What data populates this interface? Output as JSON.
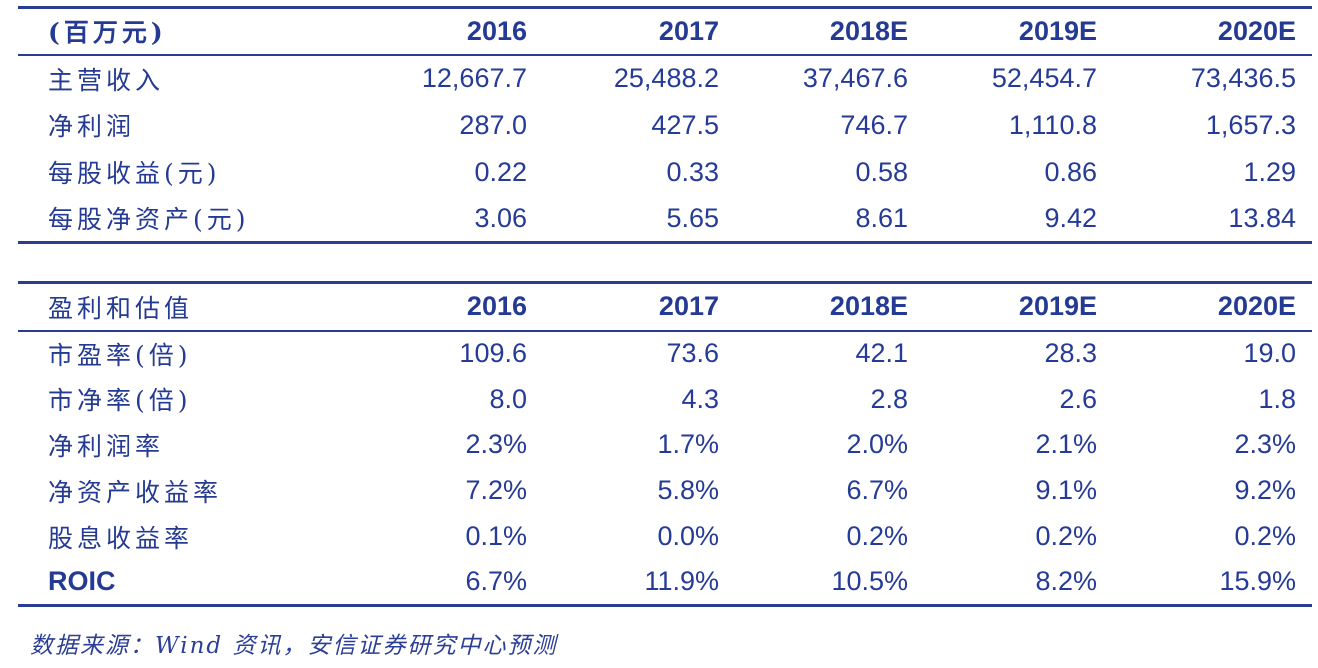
{
  "colors": {
    "text": "#243a93",
    "line": "#2a3c94",
    "background": "#ffffff"
  },
  "table1": {
    "unit_label": "(百万元)",
    "columns": [
      "2016",
      "2017",
      "2018E",
      "2019E",
      "2020E"
    ],
    "rows": [
      {
        "label": "主营收入",
        "values": [
          "12,667.7",
          "25,488.2",
          "37,467.6",
          "52,454.7",
          "73,436.5"
        ]
      },
      {
        "label": "净利润",
        "values": [
          "287.0",
          "427.5",
          "746.7",
          "1,110.8",
          "1,657.3"
        ]
      },
      {
        "label": "每股收益(元)",
        "values": [
          "0.22",
          "0.33",
          "0.58",
          "0.86",
          "1.29"
        ]
      },
      {
        "label": "每股净资产(元)",
        "values": [
          "3.06",
          "5.65",
          "8.61",
          "9.42",
          "13.84"
        ]
      }
    ]
  },
  "table2": {
    "title": "盈利和估值",
    "columns": [
      "2016",
      "2017",
      "2018E",
      "2019E",
      "2020E"
    ],
    "rows": [
      {
        "label": "市盈率(倍)",
        "values": [
          "109.6",
          "73.6",
          "42.1",
          "28.3",
          "19.0"
        ]
      },
      {
        "label": "市净率(倍)",
        "values": [
          "8.0",
          "4.3",
          "2.8",
          "2.6",
          "1.8"
        ]
      },
      {
        "label": "净利润率",
        "values": [
          "2.3%",
          "1.7%",
          "2.0%",
          "2.1%",
          "2.3%"
        ]
      },
      {
        "label": "净资产收益率",
        "values": [
          "7.2%",
          "5.8%",
          "6.7%",
          "9.1%",
          "9.2%"
        ]
      },
      {
        "label": "股息收益率",
        "values": [
          "0.1%",
          "0.0%",
          "0.2%",
          "0.2%",
          "0.2%"
        ]
      },
      {
        "label": "ROIC",
        "values": [
          "6.7%",
          "11.9%",
          "10.5%",
          "8.2%",
          "15.9%"
        ]
      }
    ]
  },
  "footer": {
    "source_text": "数据来源：Wind 资讯，安信证券研究中心预测"
  }
}
